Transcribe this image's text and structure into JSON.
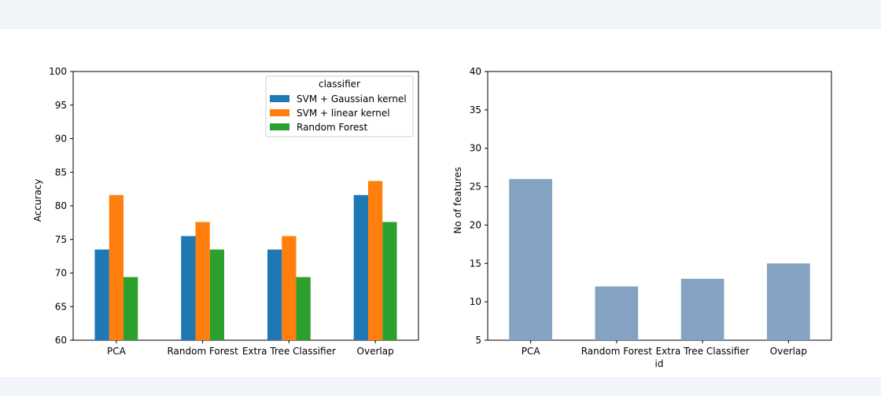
{
  "chart_data": [
    {
      "type": "bar",
      "categories": [
        "PCA",
        "Random Forest",
        "Extra Tree Classifier",
        "Overlap"
      ],
      "series": [
        {
          "name": "SVM + Gaussian kernel",
          "color": "#1f77b4",
          "values": [
            73.5,
            75.5,
            73.5,
            81.6
          ]
        },
        {
          "name": "SVM + linear kernel",
          "color": "#ff7f0e",
          "values": [
            81.6,
            77.6,
            75.5,
            83.7
          ]
        },
        {
          "name": "Random Forest",
          "color": "#2ca02c",
          "values": [
            69.4,
            73.5,
            69.4,
            77.6
          ]
        }
      ],
      "title": "",
      "xlabel": "",
      "ylabel": "Accuracy",
      "ylim": [
        60,
        100
      ],
      "yticks": [
        60,
        65,
        70,
        75,
        80,
        85,
        90,
        95,
        100
      ],
      "legend": {
        "title": "classifier",
        "placement": "top-right"
      },
      "grid": false
    },
    {
      "type": "bar",
      "categories": [
        "PCA",
        "Random Forest",
        "Extra Tree Classifier",
        "Overlap"
      ],
      "series": [
        {
          "color": "#84a2c1",
          "values": [
            26,
            12,
            13,
            15
          ]
        }
      ],
      "title": "",
      "xlabel": "id",
      "ylabel": "No of features",
      "ylim": [
        5,
        40
      ],
      "yticks": [
        5,
        10,
        15,
        20,
        25,
        30,
        35,
        40
      ],
      "grid": false
    }
  ]
}
